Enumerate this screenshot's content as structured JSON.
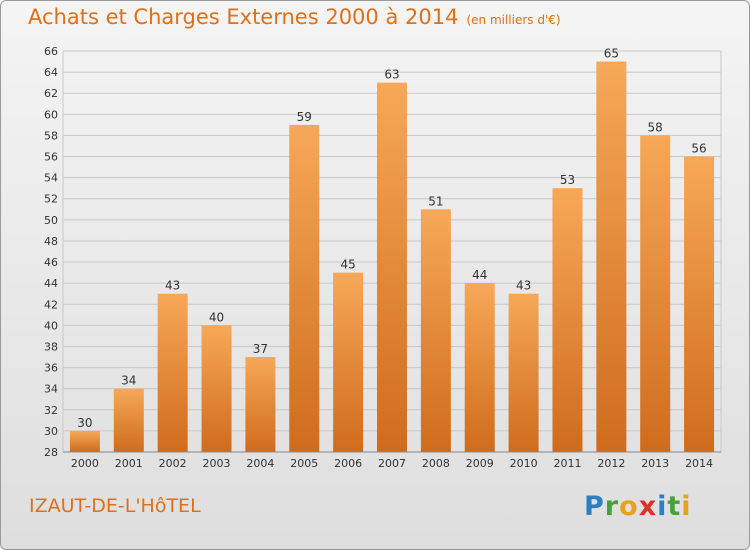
{
  "header": {
    "title": "Achats et Charges Externes 2000 à 2014",
    "unit": "(en milliers d'€)"
  },
  "footer": {
    "place": "IZAUT-DE-L'HôTEL",
    "brand_letters": [
      {
        "ch": "P",
        "color": "#2c7fc1"
      },
      {
        "ch": "r",
        "color": "#49a03d"
      },
      {
        "ch": "o",
        "color": "#e8a219"
      },
      {
        "ch": "x",
        "color": "#d8332a"
      },
      {
        "ch": "i",
        "color": "#2c7fc1"
      },
      {
        "ch": "t",
        "color": "#49a03d"
      },
      {
        "ch": "i",
        "color": "#e8a219"
      }
    ]
  },
  "colors": {
    "bar_light": "#f6a858",
    "bar_dark": "#cf6c1c",
    "accent": "#e07018",
    "grid": "#c8c8c8",
    "axis_text": "#333333"
  },
  "chart_data": {
    "type": "bar",
    "title": "Achats et Charges Externes 2000 à 2014",
    "subtitle": "(en milliers d'€)",
    "categories": [
      "2000",
      "2001",
      "2002",
      "2003",
      "2004",
      "2005",
      "2006",
      "2007",
      "2008",
      "2009",
      "2010",
      "2011",
      "2012",
      "2013",
      "2014"
    ],
    "values": [
      30,
      34,
      43,
      40,
      37,
      59,
      45,
      63,
      51,
      44,
      43,
      53,
      65,
      58,
      56
    ],
    "ylim": [
      28,
      66
    ],
    "yticks": [
      28,
      30,
      32,
      34,
      36,
      38,
      40,
      42,
      44,
      46,
      48,
      50,
      52,
      54,
      56,
      58,
      60,
      62,
      64,
      66
    ],
    "grid": true,
    "data_labels": true
  }
}
